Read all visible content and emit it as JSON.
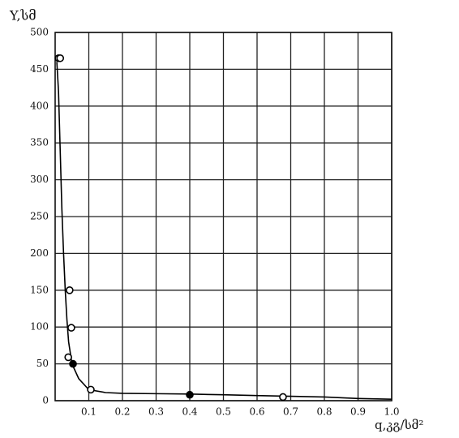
{
  "chart_data": {
    "type": "scatter",
    "y_label": "Y,სმ",
    "x_label": "q,კგ/სმ²",
    "xlim": [
      0,
      1
    ],
    "ylim": [
      0,
      500
    ],
    "xticks": [
      0.1,
      0.2,
      0.3,
      0.4,
      0.5,
      0.6,
      0.7,
      0.8,
      0.9,
      {
        "value": 1,
        "label": "1.0"
      }
    ],
    "yticks": [
      0,
      50,
      100,
      150,
      200,
      250,
      300,
      350,
      400,
      450,
      500
    ],
    "grid": true,
    "series": [
      {
        "kind": "line",
        "color": "#000000",
        "x": [
          0.005,
          0.01,
          0.015,
          0.02,
          0.025,
          0.03,
          0.035,
          0.04,
          0.05,
          0.07,
          0.1,
          0.15,
          0.2,
          0.3,
          0.4,
          0.5,
          0.6,
          0.7,
          0.8,
          0.9,
          1.0
        ],
        "values": [
          460,
          420,
          340,
          260,
          200,
          150,
          110,
          80,
          50,
          30,
          15,
          11,
          10,
          9.5,
          9,
          8,
          7,
          6,
          5,
          3,
          2
        ]
      },
      {
        "kind": "open",
        "color": "#000000",
        "x": [
          0.01,
          0.015,
          0.043,
          0.048,
          0.039,
          0.106,
          0.677
        ],
        "values": [
          465,
          465,
          150,
          99,
          59,
          15,
          5
        ]
      },
      {
        "kind": "filled",
        "color": "#000000",
        "x": [
          0.053,
          0.4
        ],
        "values": [
          50,
          8
        ]
      }
    ]
  }
}
